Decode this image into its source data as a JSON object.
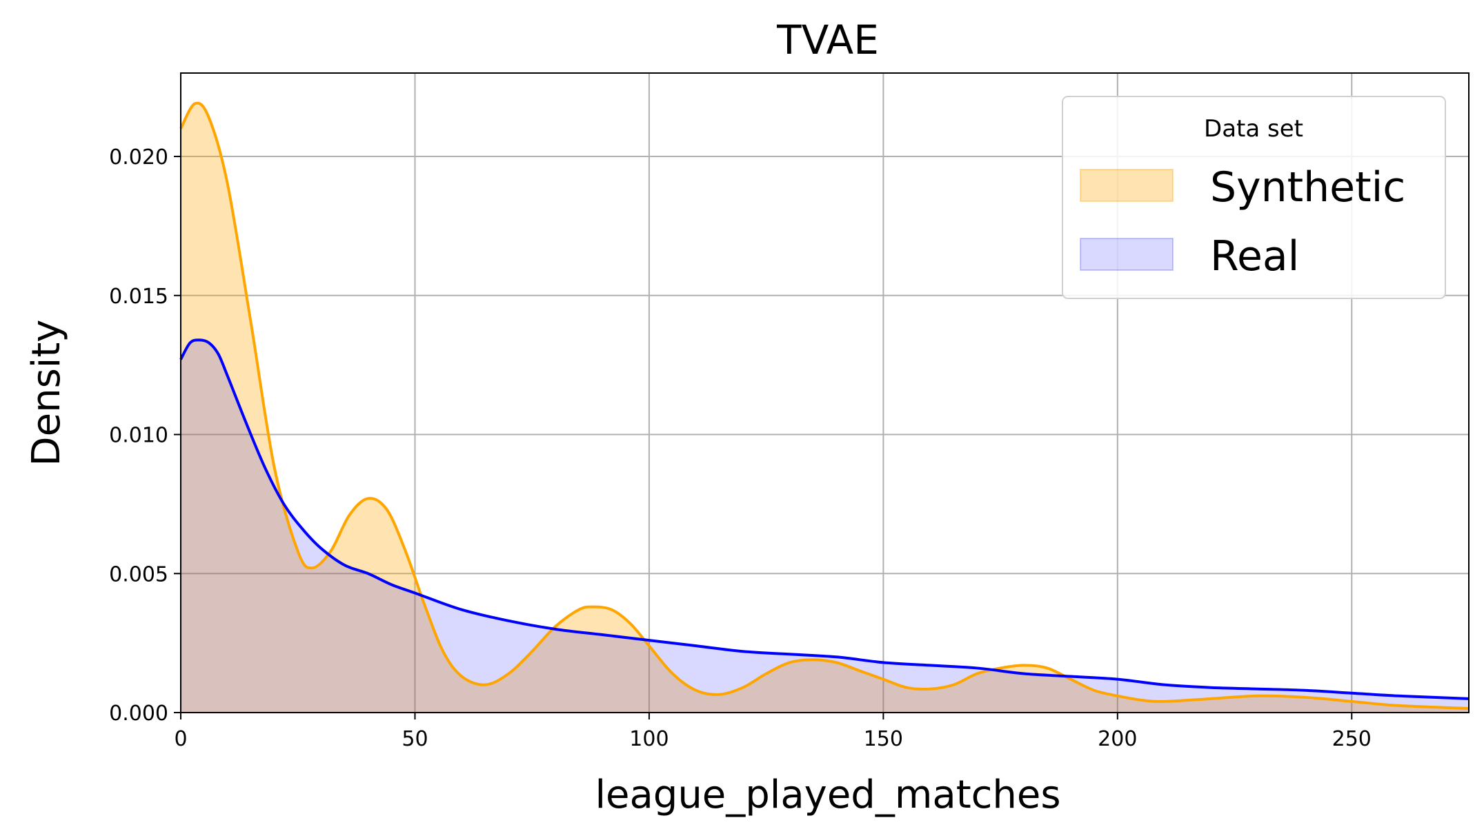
{
  "chart_data": {
    "type": "area",
    "title": "TVAE",
    "xlabel": "league_played_matches",
    "ylabel": "Density",
    "xlim": [
      0,
      275
    ],
    "ylim": [
      0,
      0.023
    ],
    "xticks": [
      0,
      50,
      100,
      150,
      200,
      250
    ],
    "yticks": [
      0.0,
      0.005,
      0.01,
      0.015,
      0.02
    ],
    "xtick_labels": [
      "0",
      "50",
      "100",
      "150",
      "200",
      "250"
    ],
    "ytick_labels": [
      "0.000",
      "0.005",
      "0.010",
      "0.015",
      "0.020"
    ],
    "grid": true,
    "legend": {
      "title": "Data set",
      "placement": "top-right"
    },
    "series": [
      {
        "name": "Synthetic",
        "color": "#FFA500",
        "x": [
          0,
          3,
          6,
          10,
          15,
          20,
          25,
          28,
          32,
          36,
          40,
          44,
          48,
          52,
          56,
          60,
          65,
          70,
          75,
          80,
          85,
          88,
          92,
          96,
          100,
          105,
          110,
          115,
          120,
          125,
          130,
          135,
          140,
          145,
          150,
          155,
          160,
          165,
          170,
          175,
          180,
          185,
          190,
          195,
          200,
          205,
          210,
          220,
          230,
          240,
          250,
          260,
          275
        ],
        "y": [
          0.021,
          0.0219,
          0.0214,
          0.019,
          0.014,
          0.0088,
          0.0058,
          0.0052,
          0.0058,
          0.0071,
          0.0077,
          0.0073,
          0.0058,
          0.0039,
          0.0022,
          0.0013,
          0.001,
          0.0014,
          0.0022,
          0.0031,
          0.0037,
          0.0038,
          0.0037,
          0.0032,
          0.0024,
          0.0014,
          0.0008,
          0.00065,
          0.0009,
          0.0014,
          0.0018,
          0.0019,
          0.0018,
          0.0015,
          0.0012,
          0.0009,
          0.00085,
          0.001,
          0.0014,
          0.0016,
          0.0017,
          0.0016,
          0.0012,
          0.0008,
          0.0006,
          0.00045,
          0.0004,
          0.0005,
          0.0006,
          0.00055,
          0.0004,
          0.00025,
          0.00015
        ]
      },
      {
        "name": "Real",
        "color": "#0000FF",
        "x": [
          0,
          2,
          4,
          6,
          8,
          10,
          14,
          18,
          22,
          26,
          30,
          35,
          40,
          45,
          50,
          60,
          70,
          80,
          90,
          100,
          110,
          120,
          130,
          140,
          150,
          160,
          170,
          180,
          190,
          200,
          210,
          220,
          230,
          240,
          250,
          260,
          275
        ],
        "y": [
          0.0127,
          0.0133,
          0.0134,
          0.0133,
          0.0129,
          0.0121,
          0.0104,
          0.0088,
          0.0075,
          0.0066,
          0.0059,
          0.0053,
          0.005,
          0.0046,
          0.0043,
          0.0037,
          0.0033,
          0.003,
          0.0028,
          0.0026,
          0.0024,
          0.0022,
          0.0021,
          0.002,
          0.0018,
          0.0017,
          0.0016,
          0.0014,
          0.0013,
          0.0012,
          0.001,
          0.0009,
          0.00085,
          0.0008,
          0.0007,
          0.0006,
          0.0005
        ]
      }
    ]
  }
}
